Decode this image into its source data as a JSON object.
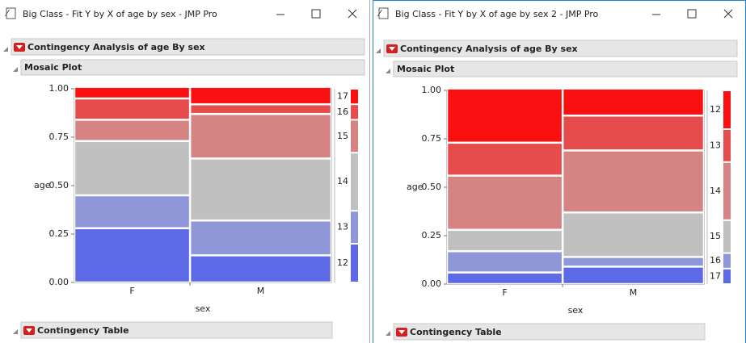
{
  "windows": [
    {
      "title": "Big Class - Fit Y by X of age by sex - JMP Pro",
      "report_title": "Contingency Analysis of age By sex",
      "section_title": "Mosaic Plot",
      "table_title": "Contingency Table",
      "plot": {
        "y_label": "age",
        "x_label": "sex",
        "ylim": [
          0,
          1
        ],
        "yticks": [
          {
            "value": 0,
            "label": "0.00"
          },
          {
            "value": 0.25,
            "label": "0.25"
          },
          {
            "value": 0.5,
            "label": "0.50"
          },
          {
            "value": 0.75,
            "label": "0.75"
          },
          {
            "value": 1,
            "label": "1.00"
          }
        ],
        "categories": [
          "F",
          "M"
        ],
        "column_shares": [
          0.45,
          0.55
        ],
        "levels": [
          "12",
          "13",
          "14",
          "15",
          "16",
          "17"
        ],
        "colors": [
          "#5d6ae8",
          "#8f97d9",
          "#c0c0c0",
          "#d58383",
          "#e64c4c",
          "#fa1010"
        ],
        "columns": [
          [
            0.28,
            0.17,
            0.28,
            0.11,
            0.11,
            0.06
          ],
          [
            0.14,
            0.18,
            0.32,
            0.23,
            0.05,
            0.09
          ]
        ],
        "margin": [
          0.2,
          0.17,
          0.3,
          0.17,
          0.08,
          0.08
        ]
      }
    },
    {
      "title": "Big Class - Fit Y by X of age by sex 2 - JMP Pro",
      "report_title": "Contingency Analysis of age By sex",
      "section_title": "Mosaic Plot",
      "table_title": "Contingency Table",
      "plot": {
        "y_label": "age",
        "x_label": "sex",
        "ylim": [
          0,
          1
        ],
        "yticks": [
          {
            "value": 0,
            "label": "0.00"
          },
          {
            "value": 0.25,
            "label": "0.25"
          },
          {
            "value": 0.5,
            "label": "0.50"
          },
          {
            "value": 0.75,
            "label": "0.75"
          },
          {
            "value": 1,
            "label": "1.00"
          }
        ],
        "categories": [
          "F",
          "M"
        ],
        "column_shares": [
          0.45,
          0.55
        ],
        "levels": [
          "17",
          "16",
          "15",
          "14",
          "13",
          "12"
        ],
        "colors": [
          "#5d6ae8",
          "#8f97d9",
          "#c0c0c0",
          "#d58383",
          "#e64c4c",
          "#fa1010"
        ],
        "columns": [
          [
            0.06,
            0.11,
            0.11,
            0.28,
            0.17,
            0.28
          ],
          [
            0.09,
            0.05,
            0.23,
            0.32,
            0.18,
            0.14
          ]
        ],
        "margin": [
          0.08,
          0.08,
          0.17,
          0.3,
          0.17,
          0.2
        ]
      }
    }
  ]
}
